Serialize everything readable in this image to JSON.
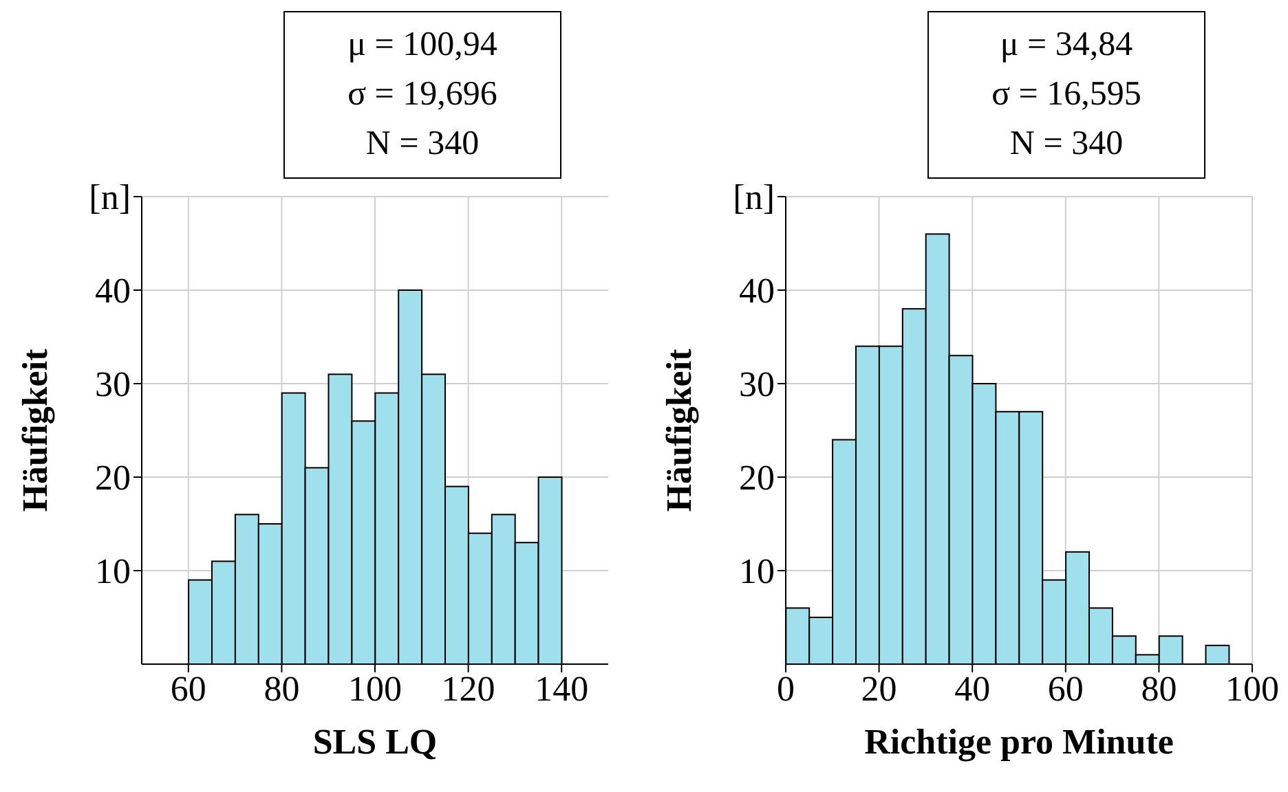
{
  "chart_data": [
    {
      "type": "histogram",
      "xlabel": "SLS LQ",
      "ylabel": "Häufigkeit",
      "annotations": [
        "μ = 100,94",
        "σ = 19,696",
        "N = 340"
      ],
      "bins": [
        60,
        65,
        70,
        75,
        80,
        85,
        90,
        95,
        100,
        105,
        110,
        115,
        120,
        125,
        130,
        135,
        140
      ],
      "values": [
        9,
        11,
        16,
        15,
        29,
        21,
        31,
        26,
        29,
        40,
        31,
        19,
        14,
        16,
        13,
        20
      ],
      "color": "#a0e0ec",
      "xlim": [
        50,
        150
      ],
      "xticks": [
        60,
        80,
        100,
        120,
        140
      ],
      "ylim": [
        0,
        50
      ],
      "yticks": [
        10,
        20,
        30,
        40,
        {
          "value": 50,
          "label": "[n]"
        }
      ],
      "grid": true
    },
    {
      "type": "histogram",
      "xlabel": "Richtige pro Minute",
      "ylabel": "Häufigkeit",
      "annotations": [
        "μ = 34,84",
        "σ = 16,595",
        "N = 340"
      ],
      "bins": [
        0,
        5,
        10,
        15,
        20,
        25,
        30,
        35,
        40,
        45,
        50,
        55,
        60,
        65,
        70,
        75,
        80,
        85,
        90,
        95
      ],
      "values": [
        6,
        5,
        24,
        34,
        34,
        38,
        46,
        33,
        30,
        27,
        27,
        9,
        12,
        6,
        3,
        1,
        3,
        0,
        2
      ],
      "color": "#a0e0ec",
      "xlim": [
        0,
        100
      ],
      "xticks": [
        0,
        20,
        40,
        60,
        80,
        100
      ],
      "ylim": [
        0,
        50
      ],
      "yticks": [
        10,
        20,
        30,
        40,
        {
          "value": 50,
          "label": "[n]"
        }
      ],
      "grid": true
    }
  ]
}
